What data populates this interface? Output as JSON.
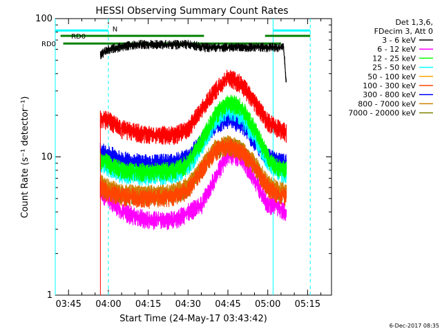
{
  "chart_data": {
    "type": "line",
    "title": "HESSI Observing Summary Count Rates",
    "ylabel": "Count Rate (s⁻¹ detector⁻¹)",
    "xlabel": "Start Time (24-May-17 03:43:42)",
    "date_stamp": "6-Dec-2017 08:35",
    "y_scale": "log",
    "ylim": [
      1,
      100
    ],
    "xlim": [
      "03:40",
      "05:24"
    ],
    "y_ticks": [
      {
        "v": 1,
        "label": "1"
      },
      {
        "v": 10,
        "label": "10"
      },
      {
        "v": 100,
        "label": "100"
      }
    ],
    "x_ticks": [
      {
        "t": "03:45",
        "label": "03:45"
      },
      {
        "t": "04:00",
        "label": "04:00"
      },
      {
        "t": "04:15",
        "label": "04:15"
      },
      {
        "t": "04:30",
        "label": "04:30"
      },
      {
        "t": "04:45",
        "label": "04:45"
      },
      {
        "t": "05:00",
        "label": "05:00"
      },
      {
        "t": "05:15",
        "label": "05:15"
      }
    ],
    "legend_header": [
      "Det 1,3,6,",
      "FDecim 3, Att 0"
    ],
    "legend_position": "right-top",
    "series": [
      {
        "name": "3 - 6 keV",
        "color": "#000000",
        "x": [
          "03:57",
          "04:00",
          "04:10",
          "04:20",
          "04:30",
          "04:36",
          "04:45",
          "04:55",
          "05:01",
          "05:06",
          "05:06.5",
          "05:07"
        ],
        "y": [
          55,
          60,
          65,
          65,
          65,
          62,
          62,
          62,
          62,
          62,
          45,
          34
        ]
      },
      {
        "name": "6 - 12 keV",
        "color": "#ff00ff",
        "x": [
          "03:57",
          "04:00",
          "04:05",
          "04:15",
          "04:25",
          "04:30",
          "04:35",
          "04:40",
          "04:45",
          "04:50",
          "04:55",
          "05:00",
          "05:03",
          "05:07"
        ],
        "y": [
          5.5,
          5.0,
          4.0,
          3.5,
          3.5,
          4.0,
          4.5,
          7.0,
          10.5,
          10.0,
          7.0,
          4.5,
          4.5,
          4.0
        ]
      },
      {
        "name": "12 - 25 keV",
        "color": "#00ff00",
        "x": [
          "03:57",
          "04:00",
          "04:05",
          "04:15",
          "04:25",
          "04:30",
          "04:35",
          "04:40",
          "04:45",
          "04:50",
          "04:55",
          "05:00",
          "05:03",
          "05:07"
        ],
        "y": [
          9.5,
          9.0,
          8.0,
          7.8,
          8.0,
          9.0,
          13,
          20,
          25,
          23,
          16,
          10,
          8.5,
          8.0
        ]
      },
      {
        "name": "25 - 50 keV",
        "color": "#00ffff",
        "x": [
          "03:57",
          "04:00",
          "04:05",
          "04:15",
          "04:25",
          "04:30",
          "04:35",
          "04:40",
          "04:45",
          "04:50",
          "04:55",
          "05:00",
          "05:03",
          "05:07"
        ],
        "y": [
          9.0,
          8.5,
          7.5,
          7.3,
          7.5,
          8.5,
          12,
          18,
          22,
          20,
          14,
          9.5,
          8.0,
          7.5
        ]
      },
      {
        "name": "50 - 100 keV",
        "color": "#ffa500",
        "x": [
          "03:57",
          "04:00",
          "04:05",
          "04:15",
          "04:25",
          "04:30",
          "04:35",
          "04:40",
          "04:45",
          "04:50",
          "04:55",
          "05:00",
          "05:03",
          "05:07"
        ],
        "y": [
          7.0,
          6.5,
          6.0,
          5.8,
          6.0,
          6.8,
          9.0,
          12,
          13,
          12,
          9.5,
          7.0,
          6.5,
          6.0
        ]
      },
      {
        "name": "100 - 300 keV",
        "color": "#ff4500",
        "x": [
          "03:57",
          "04:00",
          "04:05",
          "04:15",
          "04:25",
          "04:30",
          "04:35",
          "04:40",
          "04:45",
          "04:50",
          "04:55",
          "05:00",
          "05:03",
          "05:07"
        ],
        "y": [
          6.0,
          5.5,
          5.2,
          5.0,
          5.2,
          5.8,
          8.0,
          11,
          12,
          11,
          8.5,
          6.0,
          5.5,
          5.2
        ]
      },
      {
        "name": "300 - 800 keV",
        "color": "#0000ff",
        "x": [
          "03:57",
          "04:00",
          "04:05",
          "04:15",
          "04:25",
          "04:30",
          "04:35",
          "04:40",
          "04:45",
          "04:50",
          "04:55",
          "05:00",
          "05:03",
          "05:07"
        ],
        "y": [
          11,
          10.5,
          9.5,
          9.0,
          9.2,
          10,
          13,
          17,
          19,
          17.5,
          13,
          10,
          9.5,
          9.0
        ]
      },
      {
        "name": "800 - 7000 keV",
        "color": "#d08000",
        "x": [
          "03:57",
          "04:00",
          "04:05",
          "04:15",
          "04:25",
          "04:30",
          "04:35",
          "04:40",
          "04:45",
          "04:50",
          "04:55",
          "05:00",
          "05:03",
          "05:07"
        ],
        "y": [
          6.5,
          6.0,
          5.5,
          5.4,
          5.6,
          6.2,
          8.5,
          11.5,
          12.5,
          11.5,
          9.0,
          6.5,
          6.0,
          5.6
        ]
      },
      {
        "name": "7000 - 20000 keV",
        "color": "#808000",
        "x": [
          "03:57",
          "04:00",
          "04:05",
          "04:15",
          "04:25",
          "04:30",
          "04:35",
          "04:40",
          "04:45",
          "04:50",
          "04:55",
          "05:00",
          "05:03",
          "05:07"
        ],
        "y": [
          6.2,
          5.8,
          5.3,
          5.2,
          5.4,
          6.0,
          8.2,
          11.2,
          12.2,
          11.2,
          8.8,
          6.2,
          5.8,
          5.4
        ]
      },
      {
        "name": "",
        "color": "#ff0000",
        "x": [
          "03:57",
          "04:00",
          "04:05",
          "04:15",
          "04:25",
          "04:30",
          "04:35",
          "04:40",
          "04:45",
          "04:50",
          "04:55",
          "05:00",
          "05:03",
          "05:07"
        ],
        "y": [
          19,
          18.5,
          16,
          14.5,
          14.5,
          16,
          22,
          30,
          38,
          34,
          25,
          18,
          16.5,
          15
        ]
      }
    ],
    "flags": [
      {
        "label": "N",
        "color": "#00ffff",
        "segments": [
          [
            "03:40",
            "04:00"
          ],
          [
            "05:02",
            "05:16"
          ]
        ],
        "level": 82
      },
      {
        "label": "RD0",
        "color": "#008000",
        "segments": [
          [
            "03:42",
            "04:02"
          ],
          [
            "04:02",
            "04:36"
          ],
          [
            "04:59",
            "05:16"
          ]
        ],
        "level": 75
      },
      {
        "label": "RD0",
        "color": "#008000",
        "segments": [
          [
            "03:43",
            "05:05"
          ]
        ],
        "level": 66
      }
    ],
    "vlines": [
      {
        "t": "04:00",
        "color": "#00ffff",
        "style": "dashed"
      },
      {
        "t": "05:02",
        "color": "#00ffff",
        "style": "solid"
      },
      {
        "t": "05:16",
        "color": "#00ffff",
        "style": "dashed"
      },
      {
        "t": "03:40",
        "color": "#00ffff",
        "style": "solid"
      }
    ]
  }
}
